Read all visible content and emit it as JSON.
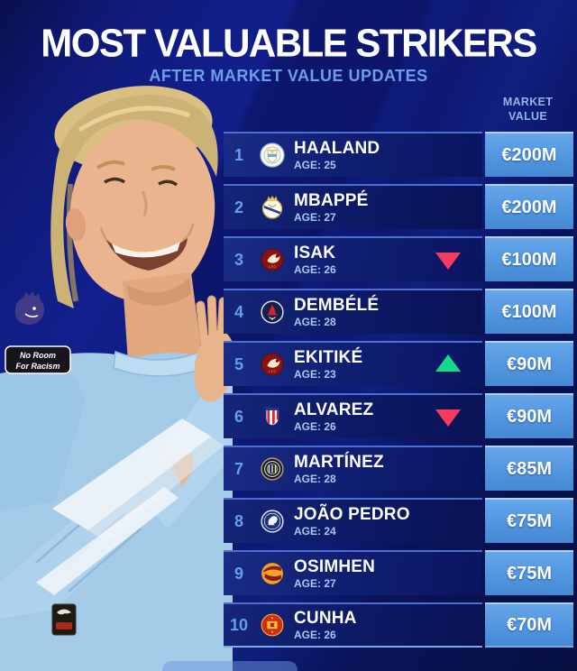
{
  "page": {
    "title": "MOST VALUABLE STRIKERS",
    "subtitle": "AFTER MARKET VALUE UPDATES"
  },
  "table": {
    "header_line1": "MARKET",
    "header_line2": "VALUE",
    "rows": [
      {
        "rank": "1",
        "name": "HAALAND",
        "age_text": "AGE: 25",
        "club": "Manchester City",
        "value": "€200M",
        "trend": "none"
      },
      {
        "rank": "2",
        "name": "MBAPPÉ",
        "age_text": "AGE: 27",
        "club": "Real Madrid",
        "value": "€200M",
        "trend": "none"
      },
      {
        "rank": "3",
        "name": "ISAK",
        "age_text": "AGE: 26",
        "club": "Liverpool",
        "value": "€100M",
        "trend": "down"
      },
      {
        "rank": "4",
        "name": "DEMBÉLÉ",
        "age_text": "AGE: 28",
        "club": "Paris Saint-Germain",
        "value": "€100M",
        "trend": "none"
      },
      {
        "rank": "5",
        "name": "EKITIKÉ",
        "age_text": "AGE: 23",
        "club": "Liverpool",
        "value": "€90M",
        "trend": "up"
      },
      {
        "rank": "6",
        "name": "ALVAREZ",
        "age_text": "AGE: 26",
        "club": "Atlético Madrid",
        "value": "€90M",
        "trend": "down"
      },
      {
        "rank": "7",
        "name": "MARTÍNEZ",
        "age_text": "AGE: 28",
        "club": "Inter Milan",
        "value": "€85M",
        "trend": "none"
      },
      {
        "rank": "8",
        "name": "JOÃO PEDRO",
        "age_text": "AGE: 24",
        "club": "Chelsea",
        "value": "€75M",
        "trend": "none"
      },
      {
        "rank": "9",
        "name": "OSIMHEN",
        "age_text": "AGE: 27",
        "club": "Galatasaray",
        "value": "€75M",
        "trend": "none"
      },
      {
        "rank": "10",
        "name": "CUNHA",
        "age_text": "AGE: 26",
        "club": "Manchester United",
        "value": "€70M",
        "trend": "none"
      }
    ]
  },
  "photo": {
    "subject": "Erling Haaland smiling and clapping in light blue Manchester City kit",
    "armband_line1": "No Room",
    "armband_line2": "For Racism"
  },
  "colors": {
    "trend-up": "#17d98b",
    "trend-down": "#f53b60",
    "value-a": "#66a6e8",
    "value-b": "#4688d2",
    "row-navy-a": "#1a2c85",
    "row-navy-b": "#0a1560",
    "subtitle": "#6d9fe8",
    "header": "#8fb6e8",
    "rank": "#64a0e8",
    "age": "#a8c8ef",
    "kit-blue": "#a3cbe8"
  }
}
